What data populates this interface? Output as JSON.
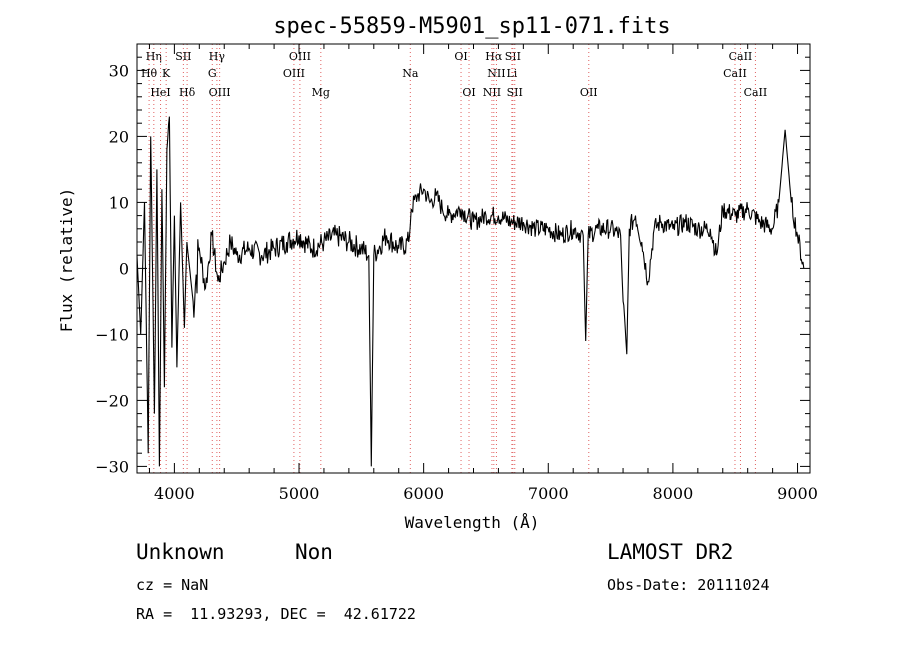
{
  "chart_data": {
    "type": "line",
    "title": "spec-55859-M5901_sp11-071.fits",
    "xlabel": "Wavelength (Å)",
    "ylabel": "Flux (relative)",
    "xlim": [
      3700,
      9100
    ],
    "ylim": [
      -31,
      34
    ],
    "xticks": [
      4000,
      5000,
      6000,
      7000,
      8000,
      9000
    ],
    "yticks": [
      -30,
      -20,
      -10,
      0,
      10,
      20,
      30
    ],
    "line_markers": [
      {
        "label": "Hη",
        "x": 3835,
        "row": 0
      },
      {
        "label": "Hθ",
        "x": 3797,
        "row": 1
      },
      {
        "label": "HeI",
        "x": 3889,
        "row": 2
      },
      {
        "label": "K",
        "x": 3934,
        "row": 1
      },
      {
        "label": "SII",
        "x": 4072,
        "row": 0
      },
      {
        "label": "Hδ",
        "x": 4102,
        "row": 2
      },
      {
        "label": "Hγ",
        "x": 4341,
        "row": 0
      },
      {
        "label": "G",
        "x": 4304,
        "row": 1
      },
      {
        "label": "OIII",
        "x": 4363,
        "row": 2
      },
      {
        "label": "OIII",
        "x": 5007,
        "row": 0
      },
      {
        "label": "OIII",
        "x": 4959,
        "row": 1
      },
      {
        "label": "Mg",
        "x": 5175,
        "row": 2
      },
      {
        "label": "Na",
        "x": 5893,
        "row": 1
      },
      {
        "label": "OI",
        "x": 6300,
        "row": 0
      },
      {
        "label": "OI",
        "x": 6364,
        "row": 2
      },
      {
        "label": "Hα",
        "x": 6563,
        "row": 0
      },
      {
        "label": "SII",
        "x": 6716,
        "row": 0
      },
      {
        "label": "NII",
        "x": 6584,
        "row": 1
      },
      {
        "label": "Li",
        "x": 6708,
        "row": 1
      },
      {
        "label": "NII",
        "x": 6548,
        "row": 2
      },
      {
        "label": "SII",
        "x": 6731,
        "row": 2
      },
      {
        "label": "OII",
        "x": 7325,
        "row": 2
      },
      {
        "label": "CaII",
        "x": 8542,
        "row": 0
      },
      {
        "label": "CaII",
        "x": 8498,
        "row": 1
      },
      {
        "label": "CaII",
        "x": 8662,
        "row": 2
      }
    ],
    "series": [
      {
        "points": [
          [
            3700,
            2
          ],
          [
            3730,
            -10
          ],
          [
            3760,
            10
          ],
          [
            3790,
            -28
          ],
          [
            3810,
            20
          ],
          [
            3840,
            -22
          ],
          [
            3860,
            15
          ],
          [
            3880,
            -30
          ],
          [
            3900,
            12
          ],
          [
            3920,
            -18
          ],
          [
            3940,
            18
          ],
          [
            3960,
            23
          ],
          [
            3980,
            -12
          ],
          [
            4000,
            8
          ],
          [
            4020,
            -15
          ],
          [
            4050,
            10
          ],
          [
            4080,
            -9
          ],
          [
            4100,
            4
          ],
          [
            4150,
            -5
          ],
          [
            4200,
            3
          ],
          [
            4250,
            -3
          ],
          [
            4300,
            5
          ],
          [
            4350,
            -2
          ],
          [
            4400,
            1
          ],
          [
            4450,
            4
          ],
          [
            4500,
            2
          ],
          [
            4600,
            3
          ],
          [
            4700,
            2
          ],
          [
            4800,
            3
          ],
          [
            4900,
            4
          ],
          [
            5000,
            5
          ],
          [
            5100,
            3
          ],
          [
            5200,
            4
          ],
          [
            5300,
            5
          ],
          [
            5400,
            4
          ],
          [
            5500,
            3
          ],
          [
            5560,
            2
          ],
          [
            5580,
            -30
          ],
          [
            5600,
            2
          ],
          [
            5700,
            5
          ],
          [
            5800,
            3
          ],
          [
            5880,
            4
          ],
          [
            5900,
            9
          ],
          [
            5950,
            11
          ],
          [
            6000,
            12
          ],
          [
            6050,
            10
          ],
          [
            6100,
            11
          ],
          [
            6150,
            9
          ],
          [
            6200,
            8
          ],
          [
            6300,
            9
          ],
          [
            6400,
            7
          ],
          [
            6500,
            8
          ],
          [
            6600,
            8
          ],
          [
            6700,
            7
          ],
          [
            6800,
            7
          ],
          [
            6900,
            6
          ],
          [
            7000,
            6
          ],
          [
            7100,
            5
          ],
          [
            7200,
            6
          ],
          [
            7280,
            5
          ],
          [
            7300,
            -11
          ],
          [
            7320,
            5
          ],
          [
            7400,
            6
          ],
          [
            7500,
            6
          ],
          [
            7580,
            5
          ],
          [
            7600,
            -5
          ],
          [
            7630,
            -13
          ],
          [
            7650,
            6
          ],
          [
            7700,
            8
          ],
          [
            7750,
            4
          ],
          [
            7800,
            -2
          ],
          [
            7850,
            6
          ],
          [
            7900,
            7
          ],
          [
            8000,
            6
          ],
          [
            8100,
            7
          ],
          [
            8200,
            6
          ],
          [
            8300,
            6
          ],
          [
            8350,
            2
          ],
          [
            8400,
            9
          ],
          [
            8500,
            8
          ],
          [
            8600,
            9
          ],
          [
            8700,
            7
          ],
          [
            8800,
            6
          ],
          [
            8850,
            10
          ],
          [
            8900,
            21
          ],
          [
            8950,
            10
          ],
          [
            9000,
            5
          ],
          [
            9050,
            0
          ]
        ]
      }
    ]
  },
  "footer": {
    "object_class": "Unknown",
    "subclass": "Non",
    "redshift": "cz = NaN",
    "coords": "RA =  11.93293, DEC =  42.61722",
    "survey": "LAMOST DR2",
    "obs_date": "Obs-Date: 20111024"
  },
  "colors": {
    "line": "#000000",
    "marker": "#e06060",
    "axes": "#000000"
  }
}
